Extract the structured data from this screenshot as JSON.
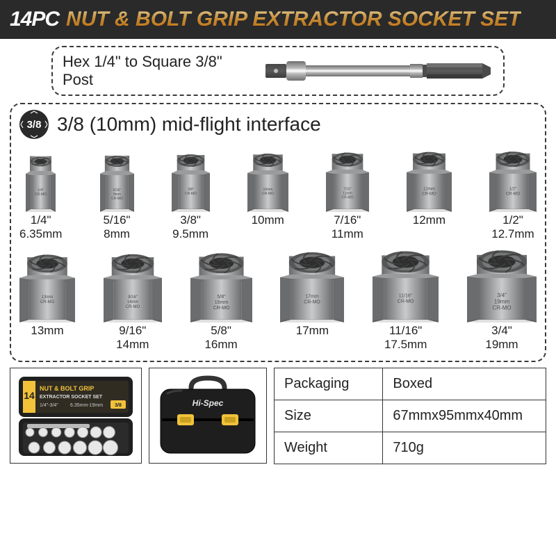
{
  "header": {
    "count": "14PC",
    "title": "NUT & BOLT GRIP EXTRACTOR SOCKET SET"
  },
  "adapter": {
    "label": "Hex 1/4\" to Square 3/8\" Post",
    "body_color_light": "#b8b8b8",
    "body_color_dark": "#6e6e6e",
    "hex_color": "#5a5a5a"
  },
  "interface": {
    "badge": "3/8",
    "label": "3/8 (10mm) mid-flight interface"
  },
  "socket_style": {
    "body_light": "#c9cacb",
    "body_mid": "#9a9b9c",
    "body_dark": "#6b6c6d",
    "top_dark": "#555657",
    "spiral": "#3d3e3f",
    "etch": "#4a4a4a"
  },
  "rows": [
    {
      "count": 7,
      "items": [
        {
          "imperial": "1/4\"",
          "metric": "6.35mm",
          "etch1": "1/4\"",
          "etch2": "CR-MO",
          "scale": 0.6
        },
        {
          "imperial": "5/16\"",
          "metric": "8mm",
          "etch1": "5/16\"",
          "etch1b": "8mm",
          "etch2": "CR-MO",
          "scale": 0.68
        },
        {
          "imperial": "3/8\"",
          "metric": "9.5mm",
          "etch1": "3/8\"",
          "etch2": "CR-MO",
          "scale": 0.76
        },
        {
          "imperial": "",
          "metric": "10mm",
          "etch1": "10mm",
          "etch2": "CR-MO",
          "scale": 0.82
        },
        {
          "imperial": "7/16\"",
          "metric": "11mm",
          "etch1": "7/16\"",
          "etch1b": "11mm",
          "etch2": "CR-MO",
          "scale": 0.86
        },
        {
          "imperial": "",
          "metric": "12mm",
          "etch1": "12mm",
          "etch2": "CR-MO",
          "scale": 0.9
        },
        {
          "imperial": "1/2\"",
          "metric": "12.7mm",
          "etch1": "1/2\"",
          "etch2": "CR-MO",
          "scale": 0.94
        }
      ]
    },
    {
      "count": 6,
      "items": [
        {
          "imperial": "",
          "metric": "13mm",
          "etch1": "13mm",
          "etch2": "CR-MO",
          "scale": 0.98
        },
        {
          "imperial": "9/16\"",
          "metric": "14mm",
          "etch1": "9/16\"",
          "etch1b": "14mm",
          "etch2": "CR-MO",
          "scale": 1.02
        },
        {
          "imperial": "5/8\"",
          "metric": "16mm",
          "etch1": "5/8\"",
          "etch1b": "16mm",
          "etch2": "CR-MO",
          "scale": 1.08
        },
        {
          "imperial": "",
          "metric": "17mm",
          "etch1": "17mm",
          "etch2": "CR-MO",
          "scale": 1.12
        },
        {
          "imperial": "11/16\"",
          "metric": "17.5mm",
          "etch1": "11/16\"",
          "etch2": "CR-MO",
          "scale": 1.16
        },
        {
          "imperial": "3/4\"",
          "metric": "19mm",
          "etch1": "3/4\"",
          "etch1b": "19mm",
          "etch2": "CR-MO",
          "scale": 1.22
        }
      ]
    }
  ],
  "case_open": {
    "body": "#1f1f1f",
    "accent": "#f2c23b",
    "label_bg": "#302c22",
    "label_count": "14",
    "label_title1": "NUT & BOLT GRIP",
    "label_title2": "EXTRACTOR SOCKET SET",
    "label_sub": "1/4\"-3/4\"",
    "label_sub2": "6.35mm-19mm",
    "socket_fill": "#e8e8e8"
  },
  "case_closed": {
    "body": "#1e1e1e",
    "clasp": "#f0c23a",
    "handle": "#333",
    "brand": "Hi-Spec"
  },
  "specs": [
    {
      "label": "Packaging",
      "value": "Boxed"
    },
    {
      "label": "Size",
      "value": "67mmx95mmx40mm"
    },
    {
      "label": "Weight",
      "value": "710g"
    }
  ]
}
